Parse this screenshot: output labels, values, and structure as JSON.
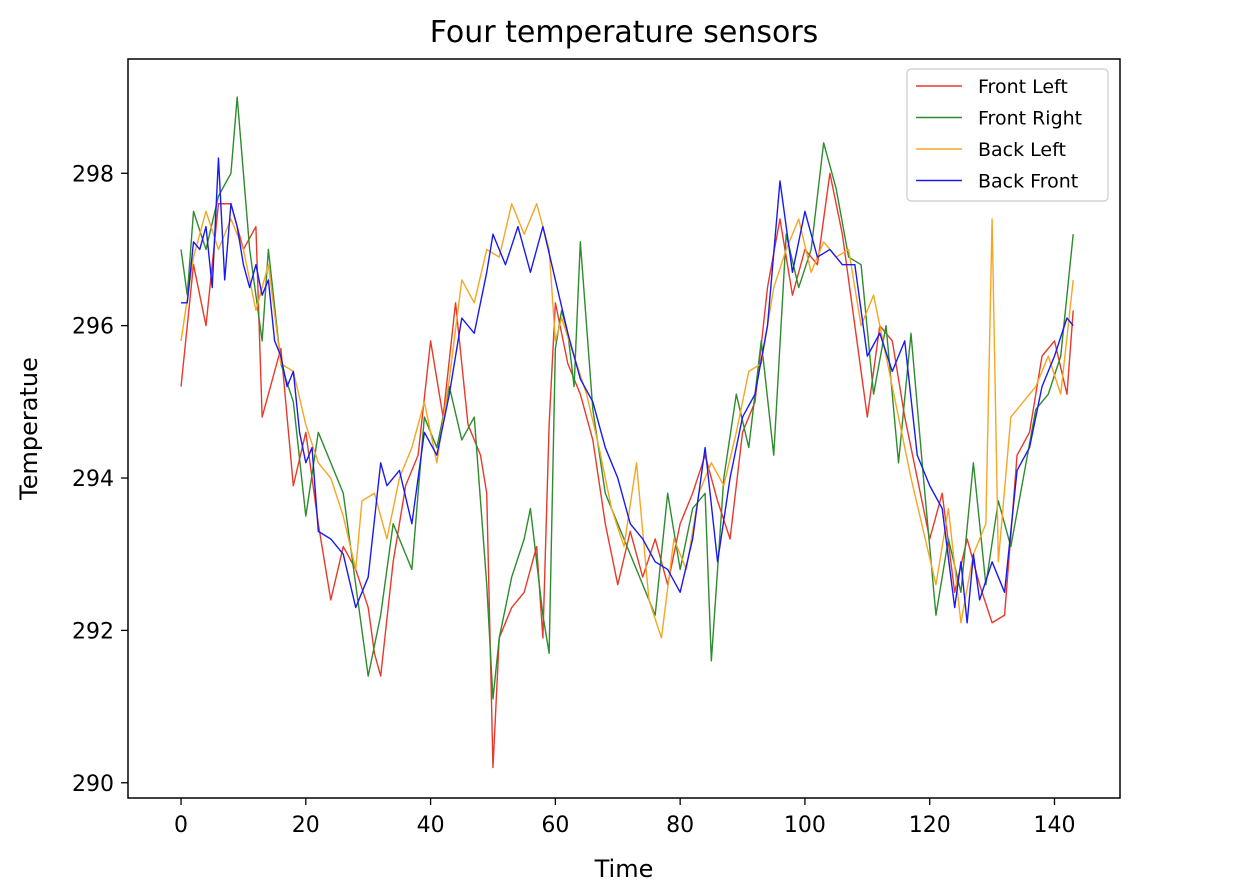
{
  "chart_data": {
    "type": "line",
    "title": "Four temperature sensors",
    "xlabel": "Time",
    "ylabel": "Temperatue",
    "xlim": [
      -8.5,
      150.5
    ],
    "ylim": [
      289.8,
      299.5
    ],
    "xticks": [
      0,
      20,
      40,
      60,
      80,
      100,
      120,
      140
    ],
    "yticks": [
      290,
      292,
      294,
      296,
      298
    ],
    "grid": false,
    "legend_position": "top-right",
    "series": [
      {
        "name": "Front Left",
        "color": "#e8392a",
        "points": [
          [
            0,
            295.2
          ],
          [
            2,
            296.8
          ],
          [
            4,
            296.0
          ],
          [
            6,
            297.6
          ],
          [
            8,
            297.6
          ],
          [
            10,
            297.0
          ],
          [
            12,
            297.3
          ],
          [
            13,
            294.8
          ],
          [
            16,
            295.7
          ],
          [
            18,
            293.9
          ],
          [
            20,
            294.6
          ],
          [
            22,
            293.4
          ],
          [
            24,
            292.4
          ],
          [
            26,
            293.1
          ],
          [
            28,
            292.8
          ],
          [
            30,
            292.3
          ],
          [
            31,
            291.7
          ],
          [
            32,
            291.4
          ],
          [
            34,
            292.9
          ],
          [
            36,
            293.9
          ],
          [
            38,
            294.3
          ],
          [
            40,
            295.8
          ],
          [
            42,
            294.8
          ],
          [
            44,
            296.3
          ],
          [
            46,
            294.7
          ],
          [
            48,
            294.3
          ],
          [
            49,
            293.8
          ],
          [
            50,
            290.2
          ],
          [
            51,
            291.9
          ],
          [
            53,
            292.3
          ],
          [
            55,
            292.5
          ],
          [
            57,
            293.1
          ],
          [
            58,
            291.9
          ],
          [
            59,
            294.7
          ],
          [
            60,
            296.3
          ],
          [
            62,
            295.5
          ],
          [
            64,
            295.1
          ],
          [
            66,
            294.5
          ],
          [
            68,
            293.4
          ],
          [
            70,
            292.6
          ],
          [
            72,
            293.3
          ],
          [
            74,
            292.7
          ],
          [
            76,
            293.2
          ],
          [
            78,
            292.6
          ],
          [
            80,
            293.4
          ],
          [
            82,
            293.8
          ],
          [
            84,
            294.3
          ],
          [
            86,
            293.7
          ],
          [
            88,
            293.2
          ],
          [
            90,
            294.6
          ],
          [
            92,
            295.0
          ],
          [
            94,
            296.5
          ],
          [
            96,
            297.4
          ],
          [
            98,
            296.4
          ],
          [
            100,
            297.0
          ],
          [
            102,
            296.8
          ],
          [
            104,
            298.0
          ],
          [
            106,
            297.2
          ],
          [
            108,
            296.0
          ],
          [
            110,
            294.8
          ],
          [
            112,
            296.0
          ],
          [
            114,
            295.8
          ],
          [
            116,
            294.8
          ],
          [
            118,
            294.0
          ],
          [
            120,
            293.2
          ],
          [
            122,
            293.8
          ],
          [
            124,
            292.5
          ],
          [
            126,
            293.2
          ],
          [
            128,
            292.6
          ],
          [
            130,
            292.1
          ],
          [
            132,
            292.2
          ],
          [
            134,
            294.3
          ],
          [
            136,
            294.6
          ],
          [
            138,
            295.6
          ],
          [
            140,
            295.8
          ],
          [
            142,
            295.1
          ],
          [
            143,
            296.2
          ]
        ]
      },
      {
        "name": "Front Right",
        "color": "#2e8b2e",
        "points": [
          [
            0,
            297.0
          ],
          [
            1,
            296.4
          ],
          [
            2,
            297.5
          ],
          [
            4,
            297.0
          ],
          [
            6,
            297.7
          ],
          [
            8,
            298.0
          ],
          [
            9,
            299.0
          ],
          [
            11,
            297.0
          ],
          [
            13,
            295.8
          ],
          [
            14,
            297.0
          ],
          [
            16,
            295.5
          ],
          [
            18,
            295.0
          ],
          [
            20,
            293.5
          ],
          [
            22,
            294.6
          ],
          [
            24,
            294.2
          ],
          [
            26,
            293.8
          ],
          [
            28,
            292.6
          ],
          [
            30,
            291.4
          ],
          [
            32,
            292.2
          ],
          [
            34,
            293.4
          ],
          [
            36,
            293.0
          ],
          [
            37,
            292.8
          ],
          [
            39,
            294.8
          ],
          [
            41,
            294.4
          ],
          [
            43,
            295.2
          ],
          [
            45,
            294.5
          ],
          [
            47,
            294.8
          ],
          [
            49,
            292.6
          ],
          [
            50,
            291.1
          ],
          [
            51,
            291.9
          ],
          [
            53,
            292.7
          ],
          [
            55,
            293.2
          ],
          [
            56,
            293.6
          ],
          [
            58,
            292.2
          ],
          [
            59,
            291.7
          ],
          [
            60,
            295.7
          ],
          [
            61,
            296.2
          ],
          [
            62,
            295.9
          ],
          [
            63,
            295.2
          ],
          [
            64,
            297.1
          ],
          [
            66,
            294.9
          ],
          [
            68,
            293.8
          ],
          [
            70,
            293.4
          ],
          [
            72,
            293.0
          ],
          [
            74,
            292.6
          ],
          [
            76,
            292.2
          ],
          [
            78,
            293.8
          ],
          [
            80,
            292.8
          ],
          [
            82,
            293.6
          ],
          [
            84,
            293.8
          ],
          [
            85,
            291.6
          ],
          [
            87,
            294.0
          ],
          [
            89,
            295.1
          ],
          [
            91,
            294.4
          ],
          [
            93,
            295.8
          ],
          [
            95,
            294.3
          ],
          [
            97,
            297.2
          ],
          [
            99,
            296.5
          ],
          [
            101,
            297.0
          ],
          [
            103,
            298.4
          ],
          [
            105,
            297.8
          ],
          [
            107,
            296.9
          ],
          [
            109,
            296.8
          ],
          [
            111,
            295.1
          ],
          [
            113,
            296.0
          ],
          [
            115,
            294.2
          ],
          [
            117,
            295.9
          ],
          [
            119,
            294.0
          ],
          [
            121,
            292.2
          ],
          [
            123,
            293.2
          ],
          [
            125,
            292.5
          ],
          [
            127,
            294.2
          ],
          [
            129,
            292.6
          ],
          [
            131,
            293.7
          ],
          [
            133,
            293.1
          ],
          [
            135,
            294.0
          ],
          [
            137,
            294.9
          ],
          [
            139,
            295.1
          ],
          [
            141,
            295.6
          ],
          [
            143,
            297.2
          ]
        ]
      },
      {
        "name": "Back Left",
        "color": "#f5a623",
        "points": [
          [
            0,
            295.8
          ],
          [
            2,
            296.9
          ],
          [
            4,
            297.5
          ],
          [
            6,
            297.0
          ],
          [
            8,
            297.4
          ],
          [
            10,
            297.0
          ],
          [
            12,
            296.2
          ],
          [
            14,
            296.8
          ],
          [
            16,
            295.5
          ],
          [
            18,
            295.4
          ],
          [
            20,
            294.7
          ],
          [
            22,
            294.2
          ],
          [
            24,
            294.0
          ],
          [
            26,
            293.5
          ],
          [
            28,
            292.8
          ],
          [
            29,
            293.7
          ],
          [
            31,
            293.8
          ],
          [
            33,
            293.2
          ],
          [
            35,
            294.0
          ],
          [
            37,
            294.4
          ],
          [
            39,
            295.0
          ],
          [
            41,
            294.2
          ],
          [
            43,
            295.3
          ],
          [
            45,
            296.6
          ],
          [
            47,
            296.3
          ],
          [
            49,
            297.0
          ],
          [
            51,
            296.9
          ],
          [
            53,
            297.6
          ],
          [
            55,
            297.2
          ],
          [
            57,
            297.6
          ],
          [
            59,
            297.0
          ],
          [
            60,
            295.8
          ],
          [
            61,
            296.1
          ],
          [
            63,
            295.6
          ],
          [
            65,
            295.1
          ],
          [
            67,
            294.4
          ],
          [
            69,
            293.6
          ],
          [
            71,
            293.1
          ],
          [
            73,
            294.2
          ],
          [
            75,
            292.4
          ],
          [
            77,
            291.9
          ],
          [
            79,
            293.2
          ],
          [
            81,
            292.8
          ],
          [
            83,
            293.8
          ],
          [
            85,
            294.2
          ],
          [
            87,
            293.9
          ],
          [
            89,
            294.6
          ],
          [
            91,
            295.4
          ],
          [
            93,
            295.5
          ],
          [
            95,
            296.5
          ],
          [
            97,
            297.0
          ],
          [
            99,
            297.4
          ],
          [
            101,
            296.7
          ],
          [
            103,
            297.1
          ],
          [
            105,
            296.9
          ],
          [
            107,
            297.0
          ],
          [
            109,
            296.0
          ],
          [
            111,
            296.4
          ],
          [
            113,
            295.6
          ],
          [
            115,
            294.8
          ],
          [
            117,
            294.0
          ],
          [
            119,
            293.3
          ],
          [
            121,
            292.6
          ],
          [
            123,
            293.6
          ],
          [
            125,
            292.1
          ],
          [
            127,
            293.0
          ],
          [
            129,
            293.4
          ],
          [
            130,
            297.4
          ],
          [
            131,
            292.9
          ],
          [
            133,
            294.8
          ],
          [
            135,
            295.0
          ],
          [
            137,
            295.2
          ],
          [
            139,
            295.6
          ],
          [
            141,
            295.1
          ],
          [
            143,
            296.6
          ]
        ]
      },
      {
        "name": "Back Front",
        "color": "#1a1af0",
        "points": [
          [
            0,
            296.3
          ],
          [
            1,
            296.3
          ],
          [
            2,
            297.1
          ],
          [
            3,
            297.0
          ],
          [
            4,
            297.3
          ],
          [
            5,
            296.5
          ],
          [
            6,
            298.2
          ],
          [
            7,
            296.6
          ],
          [
            8,
            297.6
          ],
          [
            9,
            297.3
          ],
          [
            10,
            296.8
          ],
          [
            11,
            296.5
          ],
          [
            12,
            296.8
          ],
          [
            13,
            296.4
          ],
          [
            14,
            296.6
          ],
          [
            15,
            295.8
          ],
          [
            16,
            295.6
          ],
          [
            17,
            295.2
          ],
          [
            18,
            295.4
          ],
          [
            19,
            294.6
          ],
          [
            20,
            294.2
          ],
          [
            21,
            294.4
          ],
          [
            22,
            293.3
          ],
          [
            24,
            293.2
          ],
          [
            26,
            293.0
          ],
          [
            28,
            292.3
          ],
          [
            30,
            292.7
          ],
          [
            32,
            294.2
          ],
          [
            33,
            293.9
          ],
          [
            35,
            294.1
          ],
          [
            37,
            293.4
          ],
          [
            39,
            294.6
          ],
          [
            41,
            294.3
          ],
          [
            43,
            295.1
          ],
          [
            45,
            296.1
          ],
          [
            47,
            295.9
          ],
          [
            49,
            296.7
          ],
          [
            50,
            297.2
          ],
          [
            52,
            296.8
          ],
          [
            54,
            297.3
          ],
          [
            56,
            296.7
          ],
          [
            58,
            297.3
          ],
          [
            60,
            296.6
          ],
          [
            62,
            295.9
          ],
          [
            64,
            295.3
          ],
          [
            66,
            295.0
          ],
          [
            68,
            294.4
          ],
          [
            70,
            294.0
          ],
          [
            72,
            293.4
          ],
          [
            74,
            293.2
          ],
          [
            76,
            292.9
          ],
          [
            78,
            292.8
          ],
          [
            80,
            292.5
          ],
          [
            82,
            293.2
          ],
          [
            84,
            294.4
          ],
          [
            86,
            292.9
          ],
          [
            88,
            294.0
          ],
          [
            90,
            294.8
          ],
          [
            92,
            295.1
          ],
          [
            94,
            296.0
          ],
          [
            96,
            297.9
          ],
          [
            98,
            296.7
          ],
          [
            100,
            297.5
          ],
          [
            102,
            296.9
          ],
          [
            104,
            297.0
          ],
          [
            106,
            296.8
          ],
          [
            108,
            296.8
          ],
          [
            110,
            295.6
          ],
          [
            112,
            295.9
          ],
          [
            114,
            295.4
          ],
          [
            116,
            295.8
          ],
          [
            118,
            294.3
          ],
          [
            120,
            293.9
          ],
          [
            122,
            293.6
          ],
          [
            124,
            292.3
          ],
          [
            125,
            292.9
          ],
          [
            126,
            292.1
          ],
          [
            127,
            293.0
          ],
          [
            128,
            292.4
          ],
          [
            130,
            292.9
          ],
          [
            132,
            292.5
          ],
          [
            134,
            294.1
          ],
          [
            136,
            294.4
          ],
          [
            138,
            295.2
          ],
          [
            140,
            295.6
          ],
          [
            142,
            296.1
          ],
          [
            143,
            296.0
          ]
        ]
      }
    ]
  }
}
